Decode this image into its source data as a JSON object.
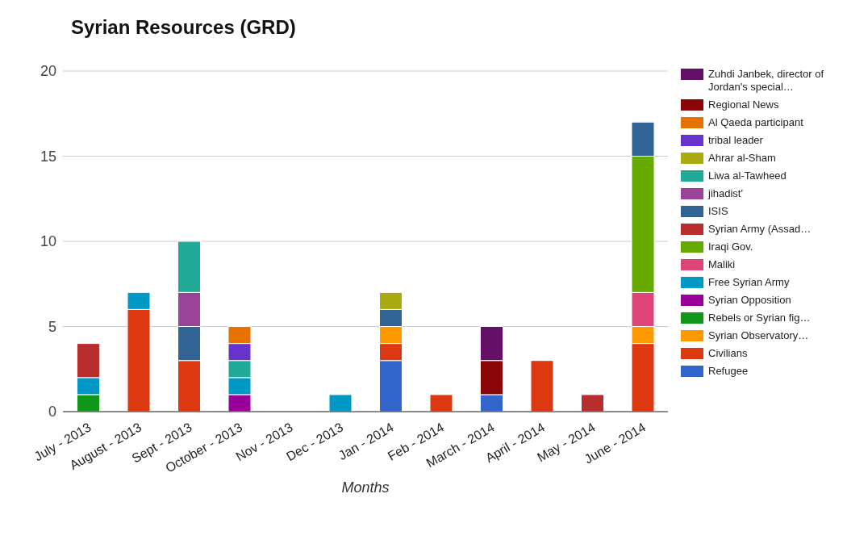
{
  "chart_data": {
    "type": "bar",
    "title": "Syrian Resources (GRD)",
    "xlabel": "Months",
    "stacked": true,
    "grid": "y",
    "legend": "right",
    "ylim": [
      0,
      20
    ],
    "yticks": [
      0,
      5,
      10,
      15,
      20
    ],
    "categories": [
      "July - 2013",
      "August - 2013",
      "Sept - 2013",
      "October - 2013",
      "Nov - 2013",
      "Dec - 2013",
      "Jan - 2014",
      "Feb - 2014",
      "March - 2014",
      "April - 2014",
      "May - 2014",
      "June - 2014"
    ],
    "series": [
      {
        "name": "Refugee",
        "color": "#3366cc",
        "values": [
          null,
          null,
          null,
          null,
          null,
          null,
          3,
          null,
          1,
          null,
          null,
          null
        ]
      },
      {
        "name": "Civilians",
        "color": "#dc3912",
        "values": [
          null,
          6,
          3,
          null,
          null,
          null,
          1,
          1,
          null,
          3,
          null,
          4
        ]
      },
      {
        "name": "Syrian Observatory…",
        "color": "#ff9900",
        "values": [
          null,
          null,
          null,
          null,
          null,
          null,
          1,
          null,
          null,
          null,
          null,
          1
        ]
      },
      {
        "name": "Rebels or Syrian fig…",
        "color": "#109618",
        "values": [
          1,
          null,
          null,
          null,
          null,
          null,
          null,
          null,
          null,
          null,
          null,
          null
        ]
      },
      {
        "name": "Syrian Opposition",
        "color": "#990099",
        "values": [
          null,
          null,
          null,
          1,
          null,
          null,
          null,
          null,
          null,
          null,
          null,
          null
        ]
      },
      {
        "name": "Free Syrian Army",
        "color": "#0099c6",
        "values": [
          1,
          1,
          null,
          1,
          null,
          1,
          null,
          null,
          null,
          null,
          null,
          null
        ]
      },
      {
        "name": "Maliki",
        "color": "#dd4477",
        "values": [
          null,
          null,
          null,
          null,
          null,
          null,
          null,
          null,
          null,
          null,
          null,
          2
        ]
      },
      {
        "name": "Iraqi Gov.",
        "color": "#66aa00",
        "values": [
          null,
          null,
          null,
          null,
          null,
          null,
          null,
          null,
          null,
          null,
          null,
          8
        ]
      },
      {
        "name": "Syrian Army (Assad…",
        "color": "#b82e2e",
        "values": [
          2,
          null,
          null,
          null,
          null,
          null,
          null,
          null,
          null,
          null,
          1,
          null
        ]
      },
      {
        "name": "ISIS",
        "color": "#316395",
        "values": [
          null,
          null,
          2,
          null,
          null,
          null,
          1,
          null,
          null,
          null,
          null,
          2
        ]
      },
      {
        "name": "jihadist'",
        "color": "#994499",
        "values": [
          null,
          null,
          2,
          null,
          null,
          null,
          null,
          null,
          null,
          null,
          null,
          null
        ]
      },
      {
        "name": "Liwa al-Tawheed",
        "color": "#22aa99",
        "values": [
          null,
          null,
          3,
          1,
          null,
          null,
          null,
          null,
          null,
          null,
          null,
          null
        ]
      },
      {
        "name": "Ahrar al-Sham",
        "color": "#aaaa11",
        "values": [
          null,
          null,
          null,
          null,
          null,
          null,
          1,
          null,
          null,
          null,
          null,
          null
        ]
      },
      {
        "name": "tribal leader",
        "color": "#6633cc",
        "values": [
          null,
          null,
          null,
          1,
          null,
          null,
          null,
          null,
          null,
          null,
          null,
          null
        ]
      },
      {
        "name": "Al Qaeda participant",
        "color": "#e67300",
        "values": [
          null,
          null,
          null,
          1,
          null,
          null,
          null,
          null,
          null,
          null,
          null,
          null
        ]
      },
      {
        "name": "Regional News",
        "color": "#8b0707",
        "values": [
          null,
          null,
          null,
          null,
          null,
          null,
          null,
          null,
          2,
          null,
          null,
          null
        ]
      },
      {
        "name": "Zuhdi Janbek, director of Jordan's special…",
        "color": "#651067",
        "values": [
          null,
          null,
          null,
          null,
          null,
          null,
          null,
          null,
          2,
          null,
          null,
          null
        ]
      }
    ]
  }
}
